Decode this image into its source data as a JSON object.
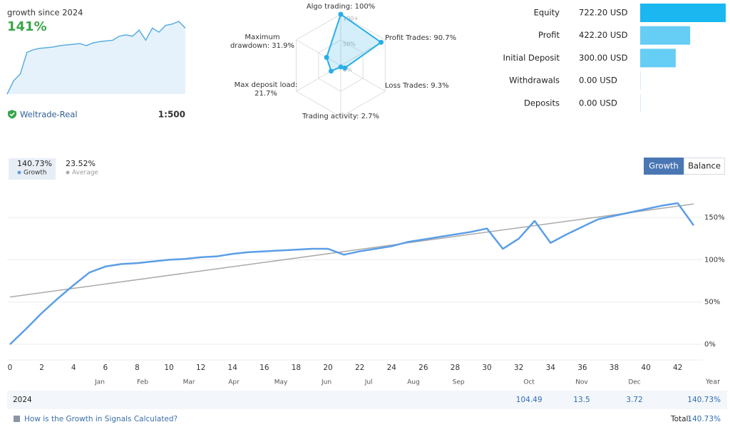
{
  "header": {
    "title": "growth since 2024",
    "growth": "141%",
    "account": "Weltrade-Real",
    "leverage": "1:500"
  },
  "chart_data": [
    {
      "type": "area",
      "color": "#5aaee0",
      "values": [
        0,
        20,
        30,
        62,
        66,
        68,
        69,
        70,
        72,
        73,
        74,
        75,
        72,
        76,
        78,
        79,
        80,
        86,
        88,
        86,
        95,
        80,
        98,
        92,
        102,
        104,
        108,
        98
      ]
    },
    {
      "type": "radar",
      "color": "#29aee6",
      "categories": [
        "Algo trading: 100%",
        "Profit Trades: 90.7%",
        "Loss Trades: 9.3%",
        "Trading activity: 2.7%",
        "Max deposit load: 21.7%",
        "Maximum drawdown: 31.9%"
      ],
      "values": [
        100,
        90.7,
        9.3,
        2.7,
        21.7,
        31.9
      ],
      "rlim": [
        0,
        100
      ],
      "rticks": [
        {
          "value": 0,
          "label": "0%"
        },
        {
          "value": 50,
          "label": "50%"
        },
        {
          "value": 100,
          "label": "100+"
        }
      ]
    },
    {
      "type": "hbar",
      "categories": [
        "Equity",
        "Profit",
        "Initial Deposit",
        "Withdrawals",
        "Deposits"
      ],
      "values": [
        722.2,
        422.2,
        300,
        0,
        0
      ],
      "value_labels": [
        "722.20 USD",
        "422.20 USD",
        "300.00 USD",
        "0.00 USD",
        "0.00 USD"
      ],
      "colors": [
        "#1ab7f0",
        "#66cdf5",
        "#66cdf5",
        "#66cdf5",
        "#66cdf5"
      ]
    },
    {
      "type": "line",
      "xlim": [
        0,
        43
      ],
      "ylim": [
        -20,
        175
      ],
      "xticks": [
        0,
        2,
        4,
        6,
        8,
        10,
        12,
        14,
        16,
        18,
        20,
        22,
        24,
        26,
        28,
        30,
        32,
        34,
        36,
        38,
        40,
        42
      ],
      "yticks": [
        {
          "value": 0,
          "label": "0%"
        },
        {
          "value": 50,
          "label": "50%"
        },
        {
          "value": 100,
          "label": "100%"
        },
        {
          "value": 150,
          "label": "150%"
        }
      ],
      "month_ticks": [
        {
          "value": 5.65,
          "label": "Jan"
        },
        {
          "value": 8.34,
          "label": "Feb"
        },
        {
          "value": 11.26,
          "label": "Mar"
        },
        {
          "value": 14.08,
          "label": "Apr"
        },
        {
          "value": 17.04,
          "label": "May"
        },
        {
          "value": 19.91,
          "label": "Jun"
        },
        {
          "value": 22.56,
          "label": "Jul"
        },
        {
          "value": 25.38,
          "label": "Aug"
        },
        {
          "value": 28.21,
          "label": "Sep"
        },
        {
          "value": 32.65,
          "label": "Oct"
        },
        {
          "value": 35.96,
          "label": "Nov"
        },
        {
          "value": 39.28,
          "label": "Dec"
        }
      ],
      "grid": true,
      "series": [
        {
          "name": "Growth",
          "legend_value": "140.73%",
          "color": "#5b9ee6",
          "x": [
            0,
            1,
            2,
            3,
            4,
            5,
            6,
            7,
            8,
            9,
            10,
            11,
            12,
            13,
            14,
            15,
            16,
            17,
            18,
            19,
            20,
            21,
            22,
            23,
            24,
            25,
            26,
            27,
            28,
            29,
            30,
            31,
            32,
            33,
            34,
            35,
            36,
            37,
            38,
            39,
            40,
            41,
            42,
            43
          ],
          "values": [
            0,
            18,
            37,
            54,
            70,
            85,
            92,
            95,
            96,
            98,
            100,
            101,
            103,
            104,
            107,
            109,
            110,
            111,
            112,
            113,
            113,
            106,
            110,
            113,
            116,
            121,
            124,
            127,
            130,
            133,
            137,
            113,
            125,
            146,
            120,
            130,
            139,
            148,
            152,
            156,
            160,
            164,
            167,
            140.73
          ]
        },
        {
          "name": "Average",
          "legend_value": "23.52%",
          "color": "#aaaaaa",
          "x": [
            0,
            43
          ],
          "values": [
            56,
            166
          ]
        }
      ]
    }
  ],
  "tabs": [
    "Growth",
    "Balance"
  ],
  "table": {
    "year_label": "Year",
    "rows": [
      {
        "year": "2024",
        "values": [
          null,
          null,
          null,
          null,
          null,
          null,
          null,
          null,
          null,
          104.49,
          13.5,
          3.72
        ],
        "total": "140.73%"
      }
    ],
    "total_label": "Total:",
    "total": "140.73%"
  },
  "footer": {
    "link": "How is the Growth in Signals Calculated?"
  }
}
